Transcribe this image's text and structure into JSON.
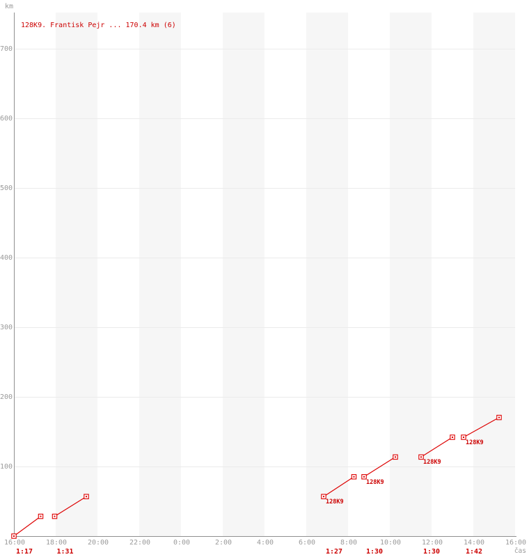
{
  "chart_data": {
    "type": "line",
    "title": "128K9. Frantisk Pejr ... 170.4 km (6)",
    "series_name": "128K9",
    "total_km": 170.4,
    "trip_count": 6,
    "ylabel": "km",
    "xlabel": "čas",
    "x_axis": {
      "start_label": "16:00",
      "span_hours": 24,
      "tick_interval_hours": 2,
      "tick_labels": [
        "16:00",
        "18:00",
        "20:00",
        "22:00",
        "0:00",
        "2:00",
        "4:00",
        "6:00",
        "8:00",
        "10:00",
        "12:00",
        "14:00",
        "16:00"
      ]
    },
    "y_axis": {
      "unit": "km",
      "ticks": [
        100,
        200,
        300,
        400,
        500,
        600,
        700
      ],
      "range": [
        0,
        752
      ],
      "grid": true
    },
    "legend": "none",
    "shaded_hour_bands": [
      [
        2,
        4
      ],
      [
        6,
        8
      ],
      [
        10,
        12
      ],
      [
        14,
        16
      ],
      [
        18,
        20
      ],
      [
        22,
        24
      ]
    ],
    "trips": [
      {
        "start_time": "16:00",
        "end_time": "17:17",
        "start_hours": 0.0,
        "end_hours": 1.283,
        "start_km": 0.0,
        "end_km": 28.4,
        "duration": "1:17",
        "point_label": ""
      },
      {
        "start_time": "17:57",
        "end_time": "19:28",
        "start_hours": 1.95,
        "end_hours": 3.467,
        "start_km": 28.4,
        "end_km": 56.8,
        "duration": "1:31",
        "point_label": ""
      },
      {
        "start_time": "6:50",
        "end_time": "8:17",
        "start_hours": 14.833,
        "end_hours": 16.283,
        "start_km": 56.8,
        "end_km": 85.2,
        "duration": "1:27",
        "point_label": "128K9"
      },
      {
        "start_time": "8:46",
        "end_time": "10:16",
        "start_hours": 16.767,
        "end_hours": 18.267,
        "start_km": 85.2,
        "end_km": 113.6,
        "duration": "1:30",
        "point_label": "128K9"
      },
      {
        "start_time": "11:30",
        "end_time": "13:00",
        "start_hours": 19.5,
        "end_hours": 21.0,
        "start_km": 113.6,
        "end_km": 142.0,
        "duration": "1:30",
        "point_label": "128K9"
      },
      {
        "start_time": "13:32",
        "end_time": "15:14",
        "start_hours": 21.533,
        "end_hours": 23.233,
        "start_km": 142.0,
        "end_km": 170.4,
        "duration": "1:42",
        "point_label": "128K9"
      }
    ],
    "colors": {
      "series": "#dd0000",
      "red_text": "#cc0000",
      "axis": "#909090",
      "tick_text": "#9a9a9a",
      "grid_line": "#ebebeb",
      "band_fill": "#f6f6f6",
      "background": "#ffffff"
    }
  }
}
